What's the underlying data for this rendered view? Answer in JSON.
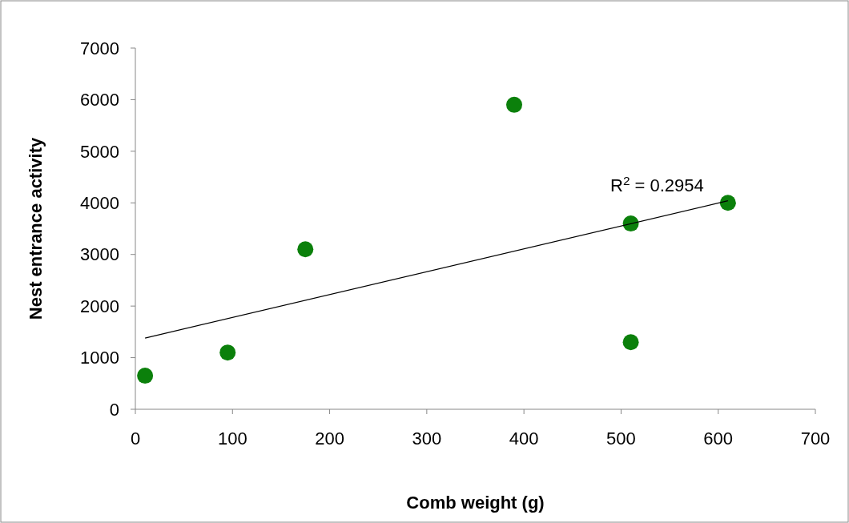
{
  "chart_data": {
    "type": "scatter",
    "xlabel": "Comb weight (g)",
    "ylabel": "Nest entrance activity",
    "annotations": [
      "R$^{2}$ = 0.2954"
    ],
    "series": [
      {
        "color": "#0b800b",
        "x": [
          10,
          95,
          175,
          390,
          510,
          510,
          610
        ],
        "values": [
          650,
          1100,
          3100,
          5900,
          3600,
          1300,
          4000
        ],
        "marker": "circle"
      },
      {
        "type": "line",
        "color": "#000000",
        "x": [
          10,
          610
        ],
        "values": [
          1380,
          4040
        ],
        "line_style": "solid"
      }
    ],
    "xlim": [
      0,
      700
    ],
    "xticks": [
      0,
      100,
      200,
      300,
      400,
      500,
      600,
      700
    ],
    "ylim": [
      0,
      7000
    ],
    "yticks": [
      0,
      1000,
      2000,
      3000,
      4000,
      5000,
      6000,
      7000
    ],
    "grid": false
  }
}
